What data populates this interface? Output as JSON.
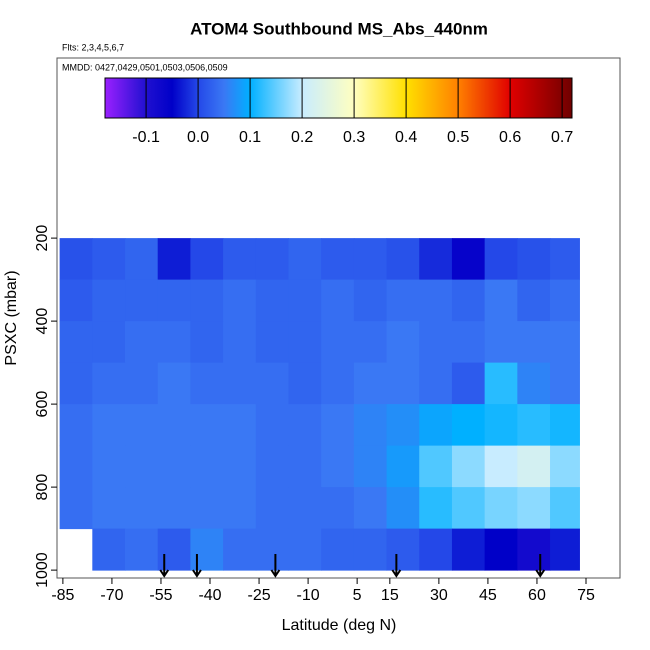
{
  "chart_data": {
    "type": "heatmap",
    "title": "ATOM4 Southbound MS_Abs_440nm",
    "subtitle": "Flts: 2,3,4,5,6,7",
    "annotation": "MMDD: 0427,0429,0501,0503,0506,0509",
    "x_label": "Latitude (deg N)",
    "y_label": "PSXC (mbar)",
    "xlim": [
      -86.8,
      85.4
    ],
    "xticks": [
      -85,
      -70,
      -55,
      -40,
      -25,
      -10,
      5,
      15,
      30,
      45,
      60,
      75
    ],
    "ylim": [
      1019,
      -234
    ],
    "yticks": [
      200,
      400,
      600,
      800,
      1000
    ],
    "x_edges": [
      -86,
      -76,
      -66,
      -56,
      -46,
      -36,
      -26,
      -16,
      -6,
      4,
      14,
      24,
      34,
      44,
      54,
      64,
      73
    ],
    "y_edges": [
      200,
      300,
      400,
      500,
      600,
      700,
      800,
      900,
      1000
    ],
    "values": [
      [
        0.01,
        0.02,
        0.03,
        -0.03,
        0.0,
        0.02,
        0.02,
        0.03,
        0.02,
        0.02,
        0.01,
        -0.02,
        -0.06,
        0.0,
        0.01,
        0.02
      ],
      [
        0.02,
        0.03,
        0.03,
        0.03,
        0.03,
        0.04,
        0.03,
        0.03,
        0.04,
        0.03,
        0.04,
        0.04,
        0.03,
        0.05,
        0.03,
        0.04
      ],
      [
        0.03,
        0.03,
        0.04,
        0.04,
        0.03,
        0.04,
        0.03,
        0.03,
        0.04,
        0.04,
        0.05,
        0.04,
        0.04,
        0.05,
        0.05,
        0.05
      ],
      [
        0.03,
        0.04,
        0.04,
        0.05,
        0.04,
        0.04,
        0.04,
        0.03,
        0.04,
        0.05,
        0.05,
        0.04,
        0.02,
        0.12,
        0.06,
        0.05
      ],
      [
        0.04,
        0.05,
        0.05,
        0.05,
        0.05,
        0.05,
        0.04,
        0.04,
        0.05,
        0.06,
        0.07,
        0.09,
        0.1,
        0.11,
        0.12,
        0.11
      ],
      [
        0.04,
        0.05,
        0.05,
        0.05,
        0.05,
        0.05,
        0.04,
        0.04,
        0.05,
        0.06,
        0.08,
        0.14,
        0.17,
        0.2,
        0.22,
        0.17
      ],
      [
        0.04,
        0.05,
        0.05,
        0.05,
        0.05,
        0.05,
        0.04,
        0.04,
        0.04,
        0.05,
        0.07,
        0.12,
        0.14,
        0.16,
        0.17,
        0.14
      ],
      [
        null,
        0.03,
        0.04,
        0.02,
        0.06,
        0.04,
        0.04,
        0.04,
        0.03,
        0.03,
        0.02,
        0.0,
        -0.03,
        -0.05,
        -0.08,
        -0.03
      ]
    ],
    "arrows": [
      -54,
      -44,
      -20,
      17,
      61
    ],
    "colorbar": {
      "lim": [
        -0.179,
        0.719
      ],
      "ticks": [
        -0.1,
        {
          "value": 0,
          "label": "0.0"
        },
        0.1,
        0.2,
        0.3,
        0.4,
        0.5,
        0.6,
        0.7
      ],
      "stops": [
        {
          "value": -0.179,
          "color": "#9a20ff"
        },
        {
          "value": -0.1,
          "color": "#2010d0"
        },
        {
          "value": -0.05,
          "color": "#0000c8"
        },
        {
          "value": 0.0,
          "color": "#2448e8"
        },
        {
          "value": 0.05,
          "color": "#3a78f4"
        },
        {
          "value": 0.1,
          "color": "#00b0ff"
        },
        {
          "value": 0.2,
          "color": "#c8ecff"
        },
        {
          "value": 0.3,
          "color": "#ffffc0"
        },
        {
          "value": 0.4,
          "color": "#ffe000"
        },
        {
          "value": 0.5,
          "color": "#ff8000"
        },
        {
          "value": 0.6,
          "color": "#e00000"
        },
        {
          "value": 0.719,
          "color": "#700000"
        }
      ]
    }
  }
}
